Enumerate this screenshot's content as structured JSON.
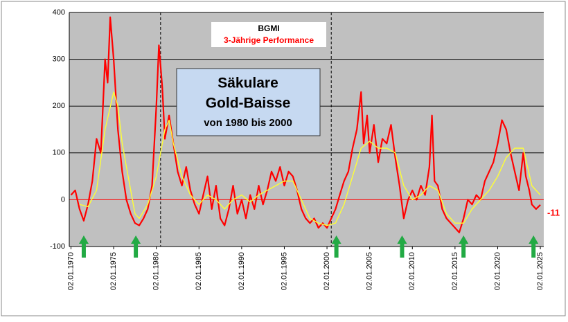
{
  "chart_data": {
    "type": "line",
    "title": "BGMI",
    "subtitle": "3-Jährige Performance",
    "annotation_box": {
      "lines": [
        "Säkulare",
        "Gold-Baisse"
      ],
      "sub": "von 1980 bis 2000"
    },
    "end_label": "-11",
    "xlim": [
      1969.8,
      2025.4
    ],
    "ylim": [
      -100,
      400
    ],
    "yticks": [
      -100,
      0,
      100,
      200,
      300,
      400
    ],
    "xticks": [
      {
        "value": 1970,
        "label": "02.01.1970"
      },
      {
        "value": 1975,
        "label": "02.01.1975"
      },
      {
        "value": 1980,
        "label": "02.01.1980"
      },
      {
        "value": 1985,
        "label": "02.01.1985"
      },
      {
        "value": 1990,
        "label": "02.01.1990"
      },
      {
        "value": 1995,
        "label": "02.01.1995"
      },
      {
        "value": 2000,
        "label": "02.01.2000"
      },
      {
        "value": 2005,
        "label": "02.01.2005"
      },
      {
        "value": 2010,
        "label": "02.01.2010"
      },
      {
        "value": 2015,
        "label": "02.01.2015"
      },
      {
        "value": 2020,
        "label": "02.01.2020"
      },
      {
        "value": 2025,
        "label": "02.01.2025"
      }
    ],
    "grid": true,
    "background": "#c0c0c0",
    "dashed_lines_x": [
      1980.5,
      2000.5
    ],
    "arrows_x": [
      1971.5,
      1977.6,
      2001.1,
      2008.8,
      2016,
      2024.2
    ],
    "arrow_color": "#22aa44",
    "series": [
      {
        "color": "#ff0000",
        "x": [
          1970,
          1970.5,
          1971,
          1971.5,
          1972,
          1972.5,
          1973,
          1973.5,
          1974,
          1974.3,
          1974.6,
          1975,
          1975.5,
          1976,
          1976.5,
          1977,
          1977.5,
          1978,
          1978.5,
          1979,
          1979.5,
          1980,
          1980.3,
          1980.7,
          1981,
          1981.5,
          1982,
          1982.5,
          1983,
          1983.5,
          1984,
          1984.5,
          1985,
          1985.5,
          1986,
          1986.5,
          1987,
          1987.5,
          1988,
          1988.5,
          1989,
          1989.5,
          1990,
          1990.5,
          1991,
          1991.5,
          1992,
          1992.5,
          1993,
          1993.5,
          1994,
          1994.5,
          1995,
          1995.5,
          1996,
          1996.5,
          1997,
          1997.5,
          1998,
          1998.5,
          1999,
          1999.5,
          2000,
          2000.5,
          2001,
          2001.5,
          2002,
          2002.5,
          2003,
          2003.5,
          2004,
          2004.3,
          2004.7,
          2005,
          2005.5,
          2006,
          2006.5,
          2007,
          2007.5,
          2008,
          2008.5,
          2009,
          2009.5,
          2010,
          2010.5,
          2011,
          2011.5,
          2012,
          2012.3,
          2012.6,
          2013,
          2013.5,
          2014,
          2014.5,
          2015,
          2015.5,
          2016,
          2016.5,
          2017,
          2017.5,
          2018,
          2018.5,
          2019,
          2019.5,
          2020,
          2020.5,
          2021,
          2021.5,
          2022,
          2022.5,
          2023,
          2023.3,
          2023.7,
          2024,
          2024.5,
          2025
        ],
        "values": [
          10,
          20,
          -20,
          -45,
          -10,
          40,
          130,
          100,
          300,
          250,
          390,
          300,
          150,
          60,
          0,
          -30,
          -50,
          -55,
          -40,
          -20,
          30,
          200,
          330,
          240,
          130,
          180,
          120,
          60,
          30,
          70,
          20,
          -10,
          -30,
          10,
          50,
          -20,
          30,
          -40,
          -55,
          -20,
          30,
          -30,
          0,
          -40,
          10,
          -20,
          30,
          -10,
          20,
          60,
          40,
          70,
          30,
          60,
          50,
          20,
          -20,
          -40,
          -50,
          -40,
          -60,
          -50,
          -60,
          -40,
          -20,
          10,
          40,
          60,
          110,
          150,
          230,
          120,
          180,
          100,
          160,
          80,
          130,
          120,
          160,
          90,
          30,
          -40,
          0,
          20,
          0,
          30,
          10,
          70,
          180,
          40,
          30,
          -20,
          -40,
          -50,
          -60,
          -70,
          -40,
          0,
          -10,
          10,
          0,
          40,
          60,
          80,
          120,
          170,
          150,
          100,
          60,
          20,
          100,
          50,
          20,
          -10,
          -20,
          -11
        ]
      },
      {
        "color": "#ffff33",
        "x": [
          1971,
          1972,
          1973,
          1974,
          1975,
          1975.5,
          1976,
          1977,
          1977.5,
          1978,
          1979,
          1980,
          1981,
          1981.5,
          1982,
          1983,
          1984,
          1985,
          1986,
          1987,
          1988,
          1989,
          1990,
          1991,
          1992,
          1993,
          1994,
          1995,
          1996,
          1997,
          1998,
          1999,
          2000,
          2001,
          2002,
          2003,
          2004,
          2005,
          2006,
          2007,
          2008,
          2009,
          2010,
          2011,
          2012,
          2013,
          2014,
          2015,
          2016,
          2017,
          2018,
          2019,
          2020,
          2021,
          2022,
          2023,
          2024,
          2025
        ],
        "values": [
          -10,
          -15,
          20,
          150,
          230,
          200,
          120,
          20,
          -30,
          -40,
          -10,
          50,
          150,
          170,
          120,
          50,
          10,
          -10,
          10,
          0,
          -20,
          0,
          10,
          -5,
          10,
          20,
          30,
          40,
          40,
          0,
          -40,
          -50,
          -55,
          -50,
          -10,
          50,
          110,
          125,
          110,
          110,
          100,
          30,
          0,
          10,
          30,
          20,
          -30,
          -50,
          -50,
          -20,
          0,
          20,
          50,
          90,
          110,
          110,
          30,
          10
        ]
      }
    ]
  }
}
